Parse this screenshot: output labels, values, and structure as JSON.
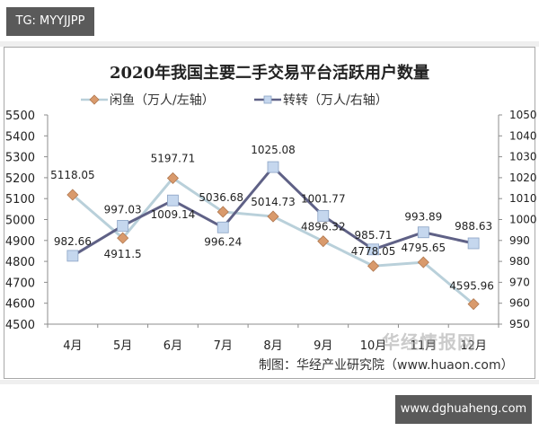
{
  "watermark_top": "TG: MYYJJPP",
  "watermark_bottom": "www.dghuaheng.com",
  "site_watermark": "华经情报网",
  "chart": {
    "title": "2020年我国主要二手交易平台活跃用户数量",
    "legend": [
      {
        "label": "闲鱼（万人/左轴）",
        "marker": "diamond",
        "line_color": "#b9d0da",
        "marker_color": "#d99a6c"
      },
      {
        "label": "转转（万人/右轴）",
        "marker": "square",
        "line_color": "#5f6186",
        "marker_color": "#c5d7ee"
      }
    ],
    "source": "制图：华经产业研究院（www.huaon.com）"
  },
  "chart_data": {
    "type": "line",
    "title": "2020年我国主要二手交易平台活跃用户数量",
    "categories": [
      "4月",
      "5月",
      "6月",
      "7月",
      "8月",
      "9月",
      "10月",
      "11月",
      "12月"
    ],
    "series": [
      {
        "name": "闲鱼（万人/左轴）",
        "axis": "left",
        "values": [
          5118.05,
          4911.5,
          5197.71,
          5036.68,
          5014.73,
          4896.32,
          4778.05,
          4795.65,
          4595.96
        ]
      },
      {
        "name": "转转（万人/右轴）",
        "axis": "right",
        "values": [
          982.66,
          997.03,
          1009.14,
          996.24,
          1025.08,
          1001.77,
          985.71,
          993.89,
          988.63
        ]
      }
    ],
    "y_left": {
      "ylim": [
        4500,
        5500
      ],
      "ticks": [
        4500,
        4600,
        4700,
        4800,
        4900,
        5000,
        5100,
        5200,
        5300,
        5400,
        5500
      ]
    },
    "y_right": {
      "ylim": [
        950,
        1050
      ],
      "ticks": [
        950,
        960,
        970,
        980,
        990,
        1000,
        1010,
        1020,
        1030,
        1040,
        1050
      ]
    },
    "grid": false,
    "legend_position": "top",
    "xlabel": "",
    "ylabel": ""
  }
}
